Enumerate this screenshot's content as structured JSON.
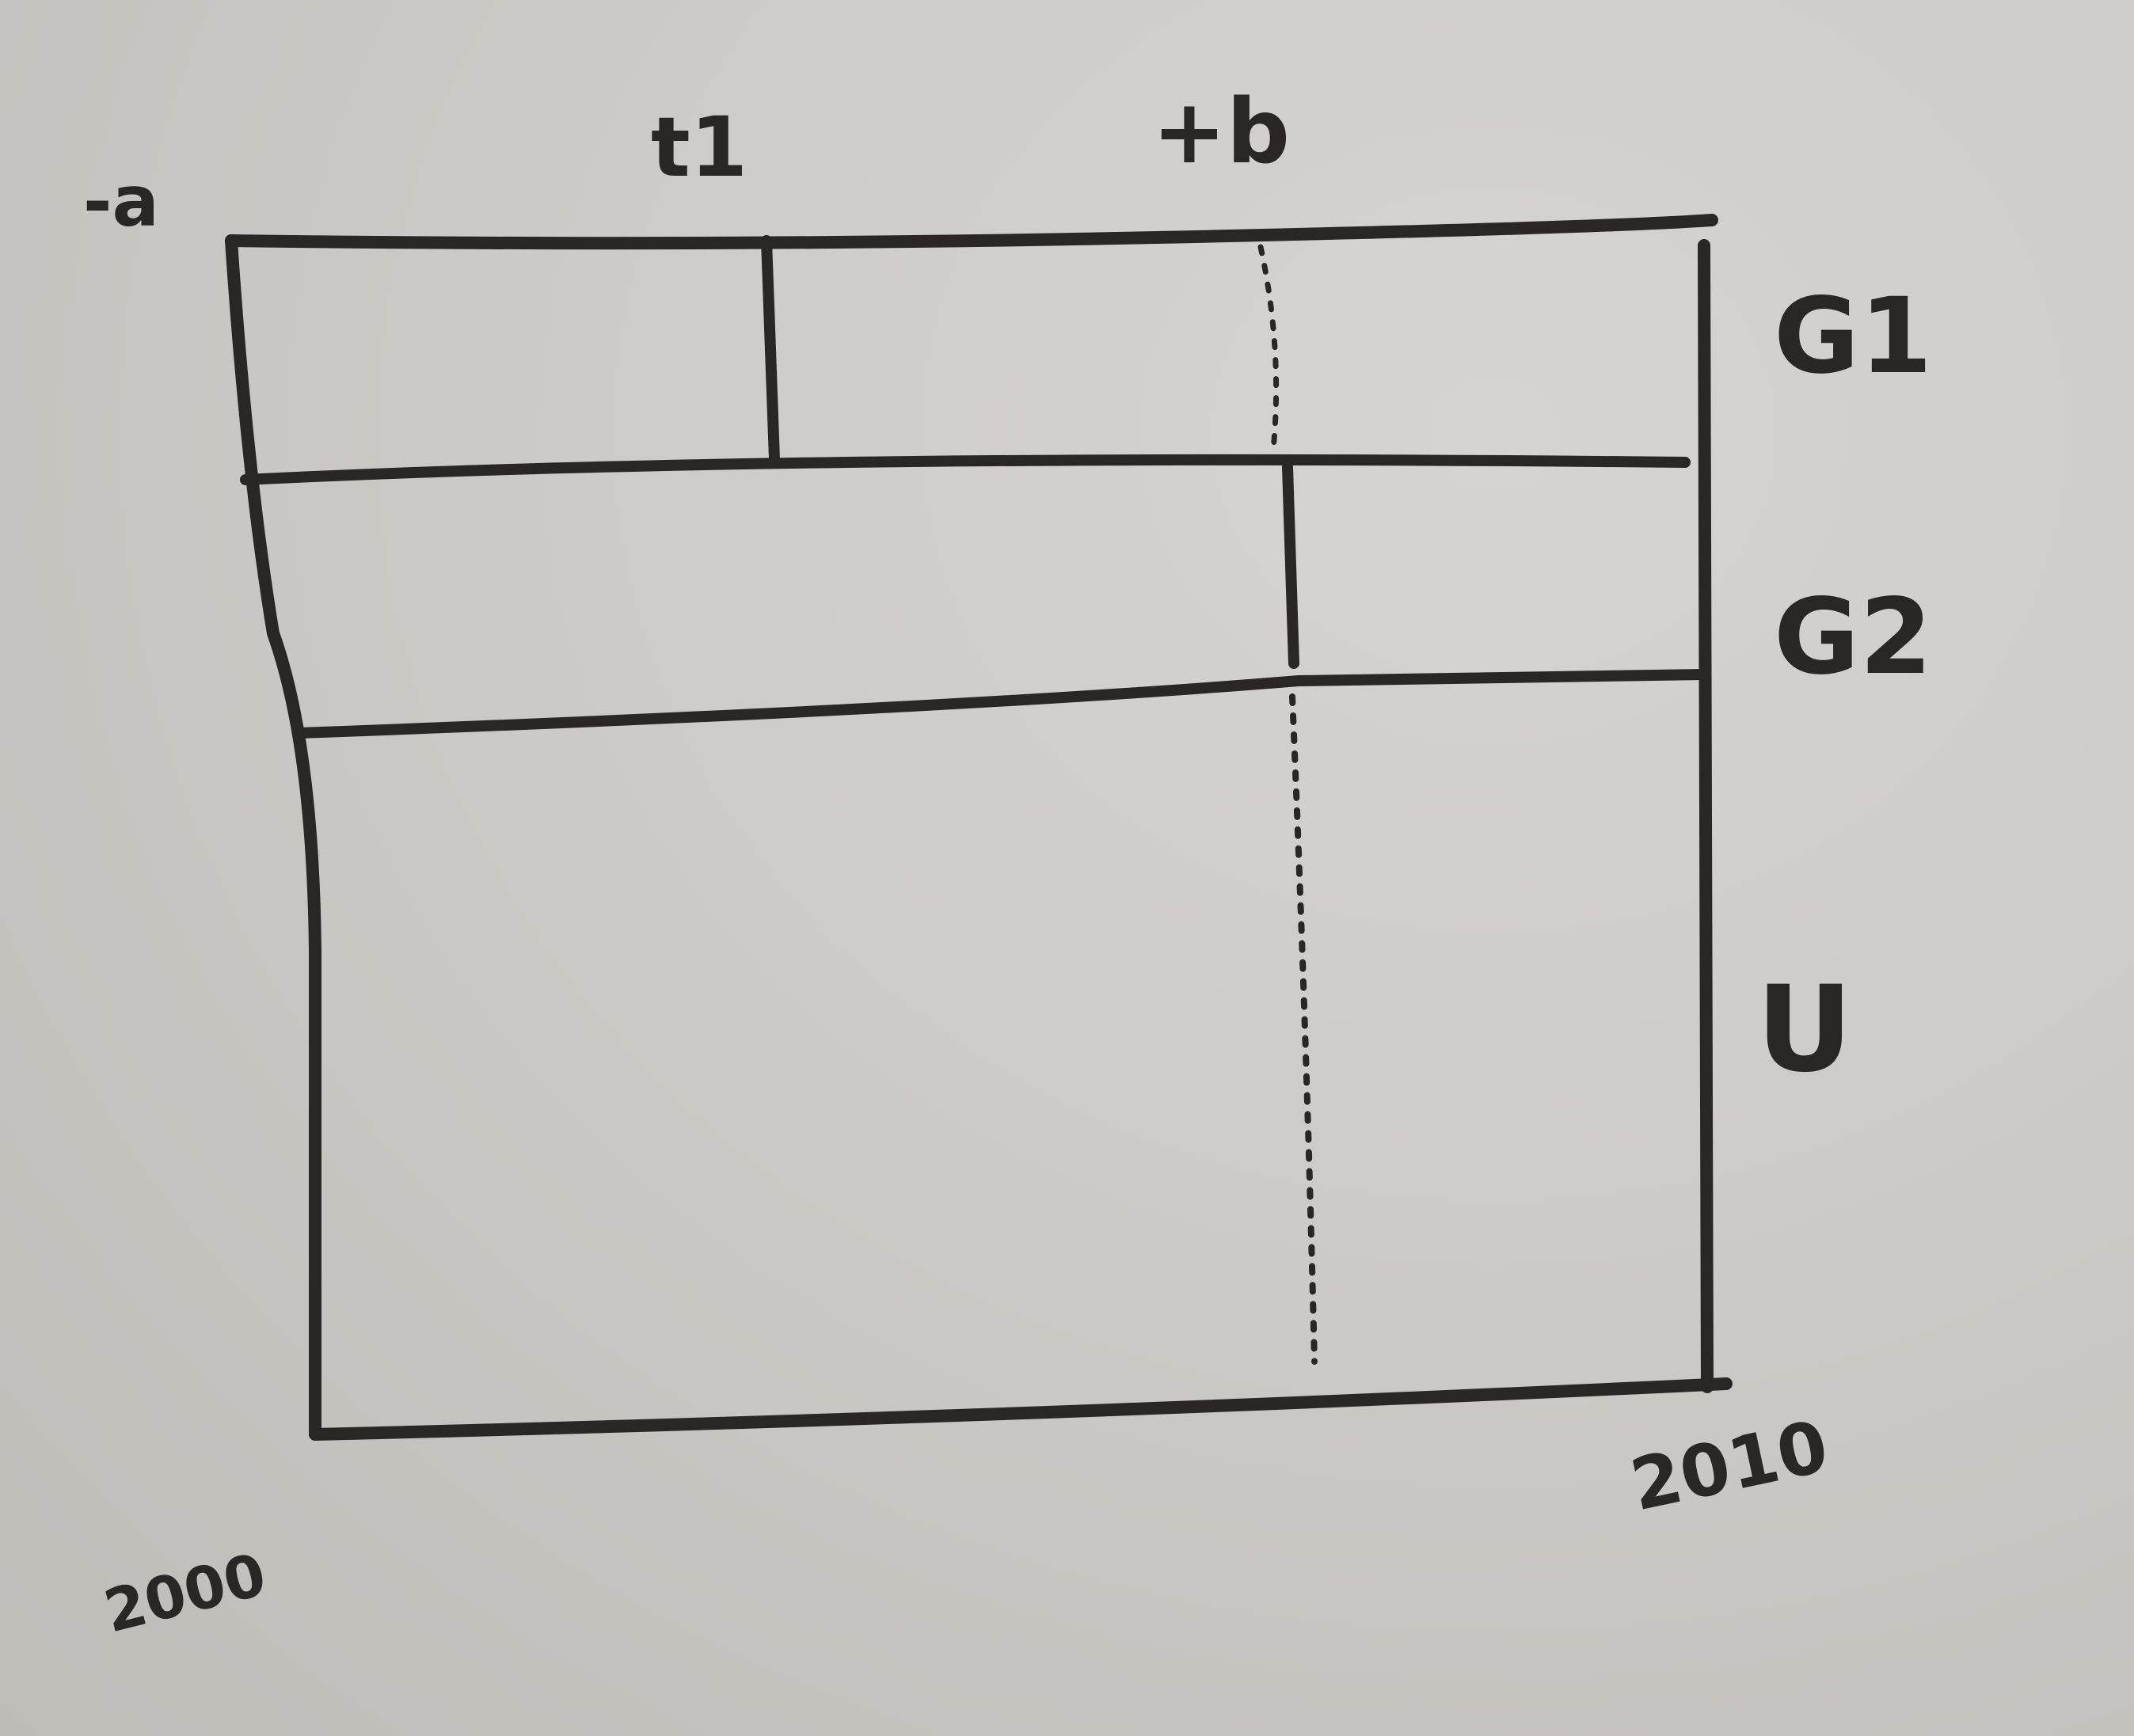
{
  "top_labels": {
    "left": "-a",
    "mid": "t1",
    "right": "+b"
  },
  "row_labels": [
    "G1",
    "G2",
    "U"
  ],
  "bottom_labels": {
    "left": "2000",
    "right": "2010"
  }
}
